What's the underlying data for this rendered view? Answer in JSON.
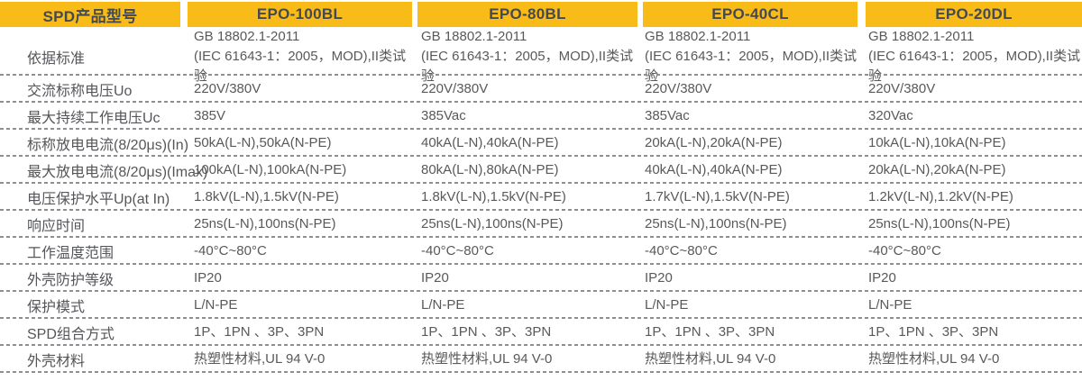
{
  "table": {
    "header": {
      "label_col": "SPD产品型号",
      "products": [
        "EPO-100BL",
        "EPO-80BL",
        "EPO-40CL",
        "EPO-20DL"
      ]
    },
    "rows": [
      {
        "label": "依据标准",
        "values": [
          "GB 18802.1-2011\n(IEC 61643-1：2005，MOD),II类试验",
          "GB 18802.1-2011\n(IEC 61643-1：2005，MOD),II类试验",
          "GB 18802.1-2011\n(IEC 61643-1：2005，MOD),II类试验",
          "GB 18802.1-2011\n(IEC 61643-1：2005，MOD),II类试验"
        ]
      },
      {
        "label": "交流标称电压Uo",
        "values": [
          "220V/380V",
          "220V/380V",
          "220V/380V",
          "220V/380V"
        ]
      },
      {
        "label": "最大持续工作电压Uc",
        "values": [
          "385V",
          "385Vac",
          "385Vac",
          "320Vac"
        ]
      },
      {
        "label": "标称放电电流(8/20μs)(In)",
        "values": [
          "50kA(L-N),50kA(N-PE)",
          "40kA(L-N),40kA(N-PE)",
          "20kA(L-N),20kA(N-PE)",
          "10kA(L-N),10kA(N-PE)"
        ]
      },
      {
        "label": "最大放电电流(8/20μs)(Imax)",
        "values": [
          "100kA(L-N),100kA(N-PE)",
          "80kA(L-N),80kA(N-PE)",
          "40kA(L-N),40kA(N-PE)",
          "20kA(L-N),20kA(N-PE)"
        ]
      },
      {
        "label": "电压保护水平Up(at In)",
        "values": [
          "1.8kV(L-N),1.5kV(N-PE)",
          "1.8kV(L-N),1.5kV(N-PE)",
          "1.7kV(L-N),1.5kV(N-PE)",
          "1.2kV(L-N),1.2kV(N-PE)"
        ]
      },
      {
        "label": "响应时间",
        "values": [
          "25ns(L-N),100ns(N-PE)",
          "25ns(L-N),100ns(N-PE)",
          "25ns(L-N),100ns(N-PE)",
          "25ns(L-N),100ns(N-PE)"
        ]
      },
      {
        "label": "工作温度范围",
        "values": [
          "-40°C~80°C",
          "-40°C~80°C",
          "-40°C~80°C",
          "-40°C~80°C"
        ]
      },
      {
        "label": "外壳防护等级",
        "values": [
          "IP20",
          "IP20",
          "IP20",
          "IP20"
        ]
      },
      {
        "label": "保护模式",
        "values": [
          "L/N-PE",
          "L/N-PE",
          "L/N-PE",
          "L/N-PE"
        ]
      },
      {
        "label": "SPD组合方式",
        "values": [
          "1P、1PN 、3P、3PN",
          "1P、1PN 、3P、3PN",
          "1P、1PN 、3P、3PN",
          "1P、1PN 、3P、3PN"
        ]
      },
      {
        "label": "外壳材料",
        "values": [
          "热塑性材料,UL 94 V-0",
          "热塑性材料,UL 94 V-0",
          "热塑性材料,UL 94 V-0",
          "热塑性材料,UL 94 V-0"
        ]
      }
    ]
  },
  "colors": {
    "header_bg": "#f8bb17",
    "header_text": "#454952",
    "body_text": "#58595b",
    "dashed_line": "#8f8f8f"
  }
}
